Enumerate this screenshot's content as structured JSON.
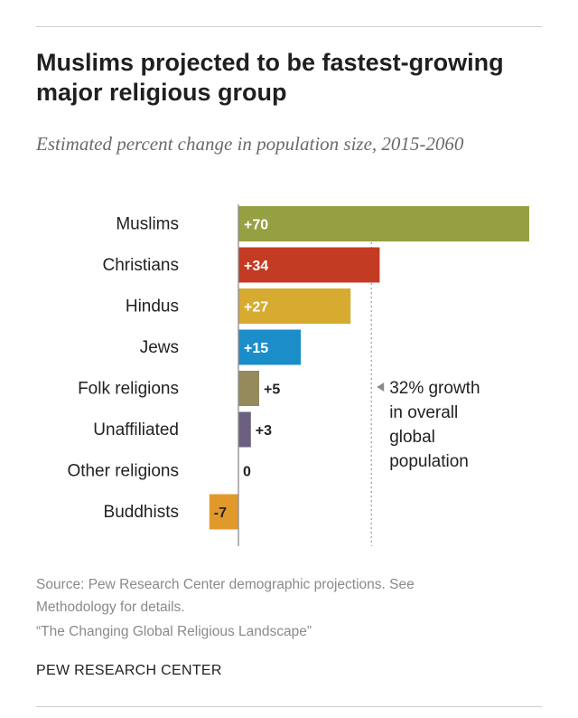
{
  "title": "Muslims projected to be fastest-growing major religious group",
  "subtitle": "Estimated percent change in population size, 2015-2060",
  "chart_data": {
    "type": "bar",
    "orientation": "horizontal",
    "categories": [
      "Muslims",
      "Christians",
      "Hindus",
      "Jews",
      "Folk religions",
      "Unaffiliated",
      "Other religions",
      "Buddhists"
    ],
    "values": [
      70,
      34,
      27,
      15,
      5,
      3,
      0,
      -7
    ],
    "labels": [
      "+70",
      "+34",
      "+27",
      "+15",
      "+5",
      "+3",
      "0",
      "-7"
    ],
    "colors": [
      "#95a042",
      "#c23b22",
      "#d6ab30",
      "#1b8ec9",
      "#958a5b",
      "#6b6080",
      "#999999",
      "#e2992c"
    ],
    "xlim": [
      -7,
      70
    ],
    "reference_line": {
      "value": 32,
      "label_lines": [
        "32% growth",
        "in overall",
        "global",
        "population"
      ]
    }
  },
  "notes": {
    "source_line1": "Source: Pew Research Center demographic projections. See",
    "source_line2": "Methodology for details.",
    "report": "“The Changing Global Religious Landscape”"
  },
  "org": "PEW RESEARCH CENTER"
}
